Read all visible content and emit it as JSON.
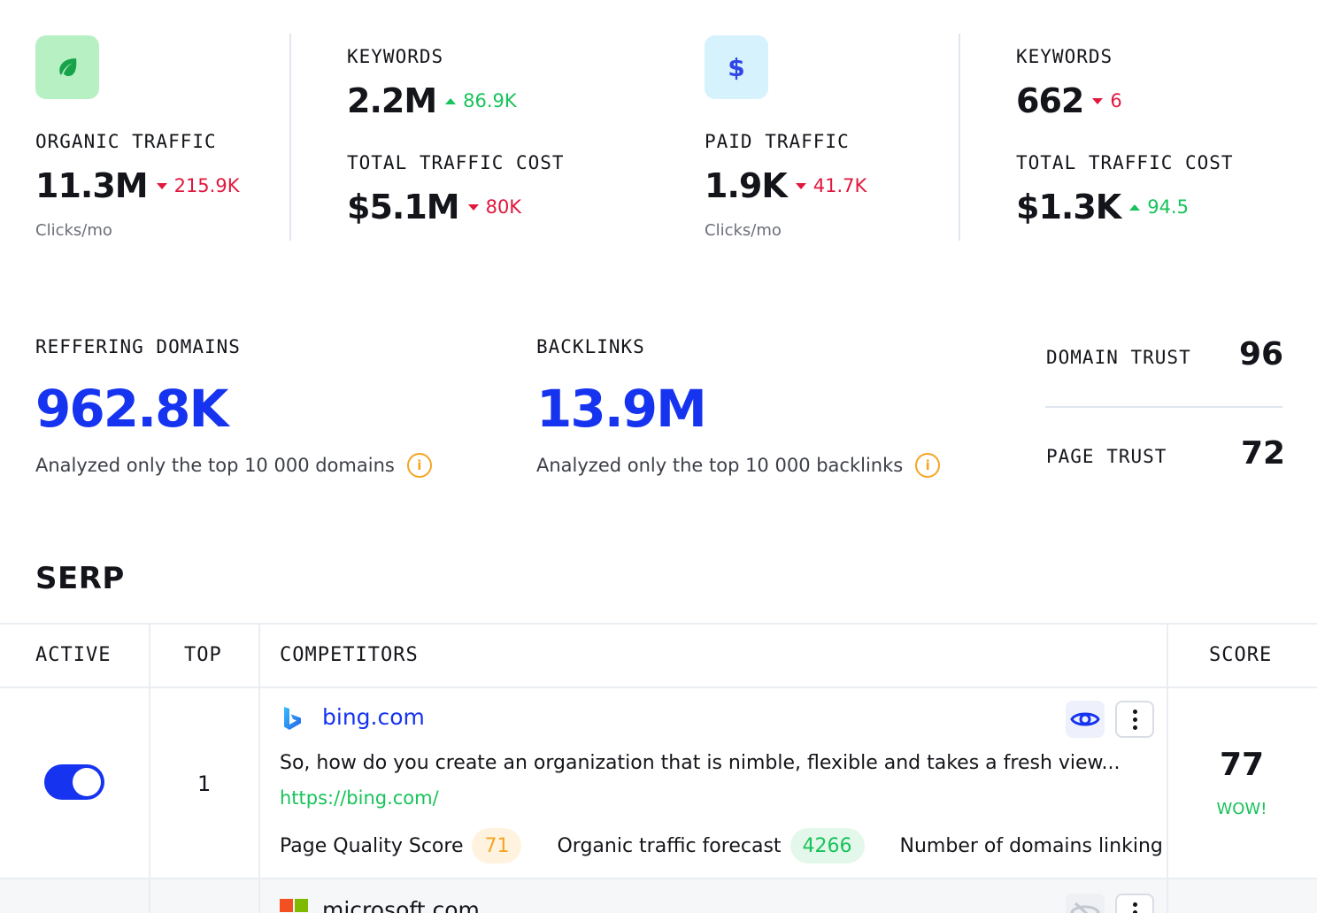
{
  "organic": {
    "label": "ORGANIC TRAFFIC",
    "value": "11.3M",
    "delta": "215.9K",
    "delta_direction": "down",
    "unit": "Clicks/mo",
    "icon": "leaf-icon",
    "keywords_label": "KEYWORDS",
    "keywords_value": "2.2M",
    "keywords_delta": "86.9K",
    "keywords_delta_direction": "up",
    "cost_label": "TOTAL TRAFFIC COST",
    "cost_value": "$5.1M",
    "cost_delta": "80K",
    "cost_delta_direction": "down"
  },
  "paid": {
    "label": "PAID TRAFFIC",
    "value": "1.9K",
    "delta": "41.7K",
    "delta_direction": "down",
    "unit": "Clicks/mo",
    "icon": "dollar-icon",
    "icon_glyph": "$",
    "keywords_label": "KEYWORDS",
    "keywords_value": "662",
    "keywords_delta": "6",
    "keywords_delta_direction": "down",
    "cost_label": "TOTAL TRAFFIC COST",
    "cost_value": "$1.3K",
    "cost_delta": "94.5",
    "cost_delta_direction": "up"
  },
  "links": {
    "referring_label": "REFFERING DOMAINS",
    "referring_value": "962.8K",
    "referring_note": "Analyzed only the top 10 000 domains",
    "backlinks_label": "BACKLINKS",
    "backlinks_value": "13.9M",
    "backlinks_note": "Analyzed only the top 10 000 backlinks",
    "info_glyph": "i"
  },
  "trust": {
    "domain_label": "DOMAIN TRUST",
    "domain_value": "96",
    "page_label": "PAGE TRUST",
    "page_value": "72"
  },
  "serp": {
    "title": "SERP",
    "columns": [
      "ACTIVE",
      "TOP",
      "COMPETITORS",
      "SCORE"
    ],
    "rows": [
      {
        "active": true,
        "top": "1",
        "domain": "bing.com",
        "description": "So, how do you create an organization that is nimble, flexible and takes a fresh view...",
        "url": "https://bing.com/",
        "quality_label": "Page Quality Score",
        "quality_value": "71",
        "forecast_label": "Organic traffic forecast",
        "forecast_value": "4266",
        "domains_linking_label": "Number of domains linking",
        "score": "77",
        "score_tag": "WOW!",
        "visible": true
      },
      {
        "domain": "microsoft.com",
        "visible": false
      }
    ]
  },
  "colors": {
    "accent_blue": "#1634f0",
    "positive": "#17c35a",
    "negative": "#e0183d",
    "info": "#f5a524"
  }
}
